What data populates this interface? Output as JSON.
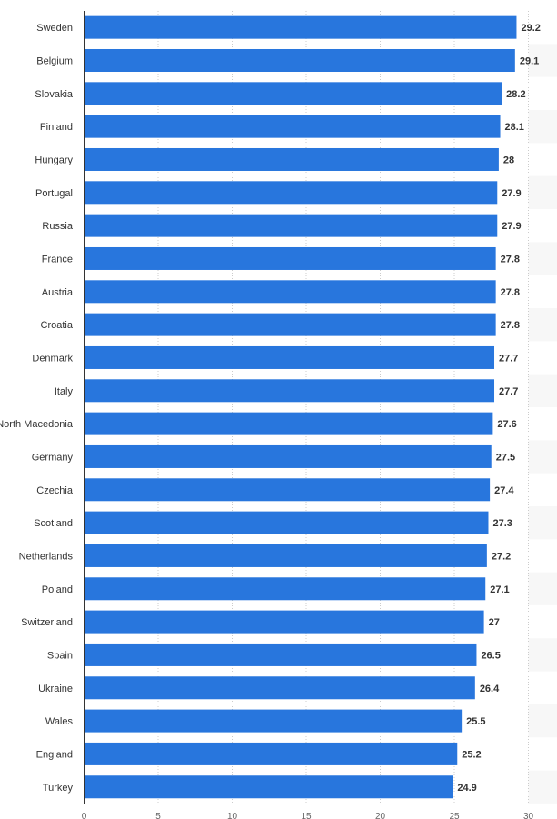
{
  "chart_data": {
    "type": "bar",
    "orientation": "horizontal",
    "categories": [
      "Sweden",
      "Belgium",
      "Slovakia",
      "Finland",
      "Hungary",
      "Portugal",
      "Russia",
      "France",
      "Austria",
      "Croatia",
      "Denmark",
      "Italy",
      "North Macedonia",
      "Germany",
      "Czechia",
      "Scotland",
      "Netherlands",
      "Poland",
      "Switzerland",
      "Spain",
      "Ukraine",
      "Wales",
      "England",
      "Turkey"
    ],
    "values": [
      29.2,
      29.1,
      28.2,
      28.1,
      28,
      27.9,
      27.9,
      27.8,
      27.8,
      27.8,
      27.7,
      27.7,
      27.6,
      27.5,
      27.4,
      27.3,
      27.2,
      27.1,
      27,
      26.5,
      26.4,
      25.5,
      25.2,
      24.9
    ],
    "xlim": [
      0,
      30
    ],
    "xticks": [
      0,
      5,
      10,
      15,
      20,
      25,
      30
    ],
    "grid": "vertical dotted",
    "bar_color": "#2876dd",
    "title": "",
    "xlabel": "",
    "ylabel": ""
  }
}
